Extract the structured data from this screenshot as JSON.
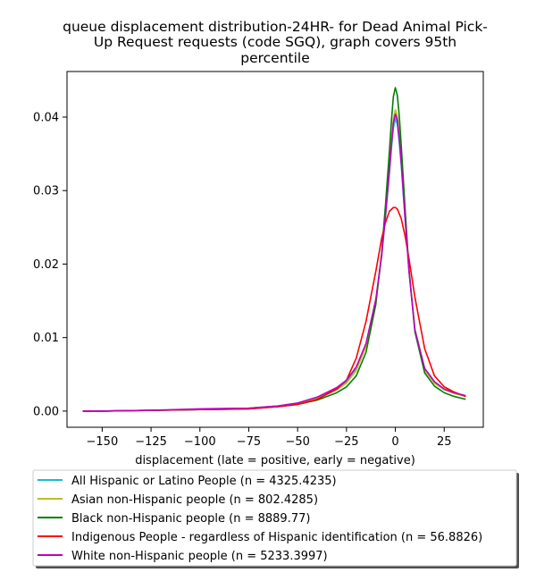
{
  "chart_data": {
    "type": "line",
    "title_lines": [
      "queue displacement distribution-24HR-  for Dead Animal Pick-",
      "Up Request  requests (code SGQ), graph covers 95th",
      "percentile"
    ],
    "xlabel": "displacement (late = positive, early = negative)",
    "ylabel": "",
    "xlim": [
      -168,
      45
    ],
    "ylim": [
      -0.0022,
      0.0462
    ],
    "xticks": [
      -150,
      -125,
      -100,
      -75,
      -50,
      -25,
      0,
      25
    ],
    "xtick_labels": [
      "−150",
      "−125",
      "−100",
      "−75",
      "−50",
      "−25",
      "0",
      "25"
    ],
    "yticks": [
      0.0,
      0.01,
      0.02,
      0.03,
      0.04
    ],
    "ytick_labels": [
      "0.00",
      "0.01",
      "0.02",
      "0.03",
      "0.04"
    ],
    "grid": false,
    "legend_position": "bottom",
    "series": [
      {
        "name": "All Hispanic or Latino People (n = 4325.4235)",
        "color": "#17becf",
        "x": [
          -160,
          -150,
          -125,
          -100,
          -75,
          -60,
          -50,
          -40,
          -30,
          -25,
          -20,
          -15,
          -10,
          -7,
          -5,
          -3,
          -2,
          -1,
          0,
          1,
          2,
          3,
          5,
          7,
          10,
          15,
          20,
          25,
          30,
          36
        ],
        "y": [
          0.0,
          0.0,
          0.0001,
          0.0002,
          0.0004,
          0.0007,
          0.0011,
          0.0018,
          0.003,
          0.004,
          0.0058,
          0.009,
          0.015,
          0.021,
          0.0265,
          0.0325,
          0.0357,
          0.0385,
          0.0398,
          0.039,
          0.0365,
          0.0335,
          0.026,
          0.019,
          0.0112,
          0.0058,
          0.004,
          0.003,
          0.0025,
          0.002
        ]
      },
      {
        "name": "Asian non-Hispanic people (n = 802.4285)",
        "color": "#bcbd22",
        "x": [
          -160,
          -150,
          -125,
          -100,
          -75,
          -60,
          -50,
          -40,
          -30,
          -25,
          -20,
          -15,
          -10,
          -7,
          -5,
          -3,
          -2,
          -1,
          0,
          1,
          2,
          3,
          5,
          7,
          10,
          15,
          20,
          25,
          30,
          36
        ],
        "y": [
          0.0,
          0.0,
          0.0001,
          0.0002,
          0.0004,
          0.0007,
          0.001,
          0.0017,
          0.0029,
          0.0038,
          0.0055,
          0.0088,
          0.015,
          0.0212,
          0.027,
          0.0333,
          0.0368,
          0.0398,
          0.041,
          0.0402,
          0.0377,
          0.0343,
          0.0265,
          0.0192,
          0.0112,
          0.0056,
          0.0038,
          0.0029,
          0.0024,
          0.002
        ]
      },
      {
        "name": "Black non-Hispanic people (n = 8889.77)",
        "color": "#008000",
        "x": [
          -160,
          -150,
          -125,
          -100,
          -75,
          -60,
          -50,
          -40,
          -30,
          -25,
          -20,
          -15,
          -10,
          -7,
          -5,
          -3,
          -2,
          -1,
          0,
          1,
          2,
          3,
          5,
          7,
          10,
          15,
          20,
          25,
          30,
          36
        ],
        "y": [
          0.0,
          0.0,
          0.0001,
          0.0002,
          0.0003,
          0.0006,
          0.0009,
          0.0015,
          0.0025,
          0.0033,
          0.0048,
          0.008,
          0.0145,
          0.0215,
          0.0282,
          0.0355,
          0.0395,
          0.0428,
          0.044,
          0.043,
          0.0402,
          0.0362,
          0.0275,
          0.0192,
          0.0108,
          0.0052,
          0.0034,
          0.0025,
          0.002,
          0.0016
        ]
      },
      {
        "name": "Indigenous People - regardless of Hispanic identification (n = 56.8826)",
        "color": "#ff0000",
        "x": [
          -160,
          -150,
          -125,
          -100,
          -75,
          -60,
          -50,
          -40,
          -35,
          -30,
          -25,
          -20,
          -15,
          -10,
          -7,
          -5,
          -3,
          -1,
          0,
          1,
          3,
          5,
          7,
          10,
          15,
          20,
          25,
          30,
          36
        ],
        "y": [
          0.0,
          0.0,
          0.0001,
          0.0002,
          0.0003,
          0.0006,
          0.0009,
          0.0016,
          0.0023,
          0.003,
          0.0042,
          0.0072,
          0.0122,
          0.019,
          0.0235,
          0.0257,
          0.0272,
          0.0277,
          0.0277,
          0.0275,
          0.0262,
          0.0238,
          0.0207,
          0.0155,
          0.0085,
          0.0048,
          0.0033,
          0.0026,
          0.002
        ]
      },
      {
        "name": "White non-Hispanic people (n = 5233.3997)",
        "color": "#bf00bf",
        "x": [
          -160,
          -150,
          -125,
          -100,
          -75,
          -60,
          -50,
          -40,
          -30,
          -25,
          -20,
          -15,
          -10,
          -7,
          -5,
          -3,
          -2,
          -1,
          0,
          1,
          2,
          3,
          5,
          7,
          10,
          15,
          20,
          25,
          30,
          36
        ],
        "y": [
          0.0,
          0.0,
          0.0001,
          0.0003,
          0.0004,
          0.0007,
          0.0011,
          0.0019,
          0.0032,
          0.0042,
          0.006,
          0.0092,
          0.0152,
          0.0212,
          0.0268,
          0.0328,
          0.0362,
          0.0392,
          0.0404,
          0.0396,
          0.0371,
          0.0339,
          0.0262,
          0.019,
          0.011,
          0.0058,
          0.004,
          0.003,
          0.0025,
          0.0021
        ]
      }
    ]
  }
}
